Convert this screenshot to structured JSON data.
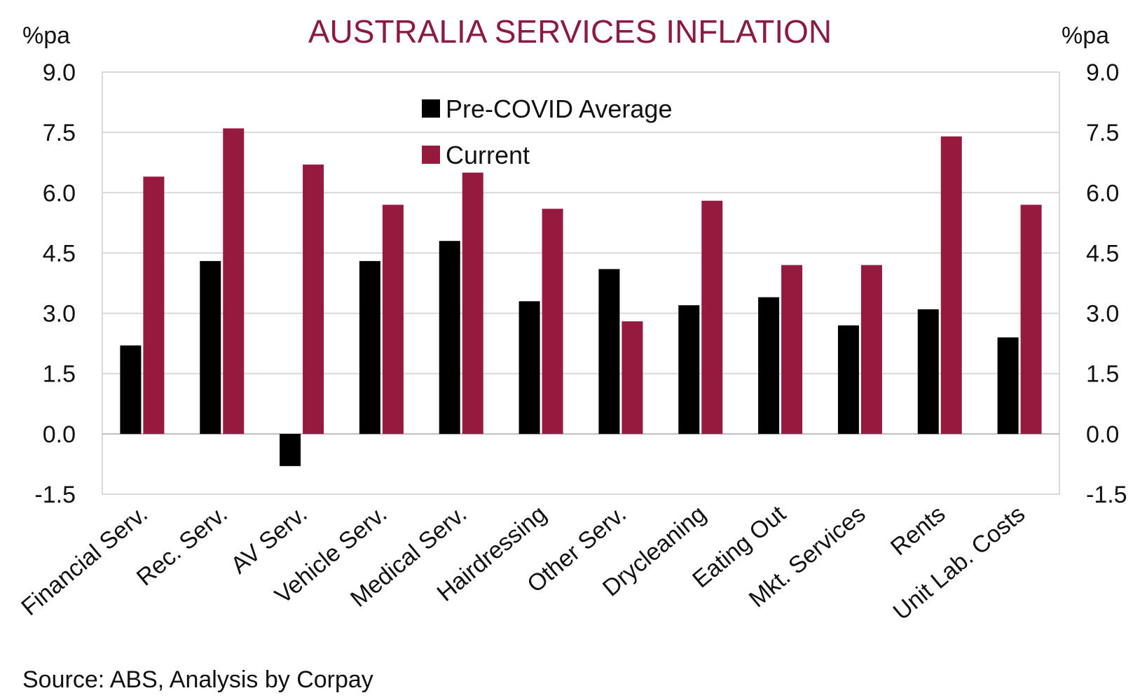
{
  "chart_data": {
    "type": "bar",
    "title": "AUSTRALIA SERVICES INFLATION",
    "y_unit_left": "%pa",
    "y_unit_right": "%pa",
    "categories": [
      "Financial Serv.",
      "Rec. Serv.",
      "AV Serv.",
      "Vehicle Serv.",
      "Medical Serv.",
      "Hairdressing",
      "Other Serv.",
      "Drycleaning",
      "Eating Out",
      "Mkt. Services",
      "Rents",
      "Unit Lab. Costs"
    ],
    "series": [
      {
        "name": "Pre-COVID Average",
        "color": "#000000",
        "values": [
          2.2,
          4.3,
          -0.8,
          4.3,
          4.8,
          3.3,
          4.1,
          3.2,
          3.4,
          2.7,
          3.1,
          2.4
        ]
      },
      {
        "name": "Current",
        "color": "#951a3e",
        "values": [
          6.4,
          7.6,
          6.7,
          5.7,
          6.5,
          5.6,
          2.8,
          5.8,
          4.2,
          4.2,
          7.4,
          5.7
        ]
      }
    ],
    "ylim": [
      -1.5,
      9.0
    ],
    "yticks": [
      "9.0",
      "7.5",
      "6.0",
      "4.5",
      "3.0",
      "1.5",
      "0.0",
      "-1.5"
    ],
    "ytick_values": [
      9.0,
      7.5,
      6.0,
      4.5,
      3.0,
      1.5,
      0.0,
      -1.5
    ],
    "grid": true,
    "legend_position": "top-center",
    "source": "Source: ABS, Analysis by Corpay"
  }
}
